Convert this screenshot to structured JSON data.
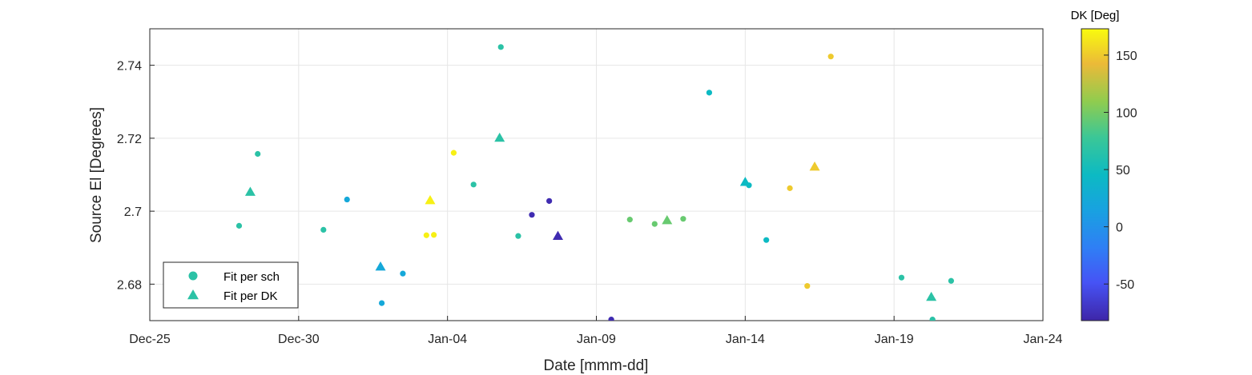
{
  "chart_data": {
    "type": "scatter",
    "xlabel": "Date [mmm-dd]",
    "ylabel": "Source El [Degrees]",
    "x_ticks": [
      "Dec-25",
      "Dec-30",
      "Jan-04",
      "Jan-09",
      "Jan-14",
      "Jan-19",
      "Jan-24"
    ],
    "x_range": [
      "Dec-25",
      "Jan-24"
    ],
    "ylim": [
      2.67,
      2.75
    ],
    "y_ticks": [
      "2.68",
      "2.7",
      "2.72",
      "2.74"
    ],
    "grid": true,
    "legend_position": "bottom-left",
    "colorbar": {
      "title": "DK [Deg]",
      "range": [
        -82,
        173
      ],
      "ticks": [
        "-50",
        "0",
        "50",
        "100",
        "150"
      ],
      "colormap": "parula"
    },
    "series": [
      {
        "name": "Fit per sch",
        "marker": "circle",
        "points": [
          {
            "date": "Dec-28 00:00",
            "y": 2.696,
            "dk": 67
          },
          {
            "date": "Dec-28 15:00",
            "y": 2.7157,
            "dk": 67
          },
          {
            "date": "Dec-30 20:00",
            "y": 2.6949,
            "dk": 67
          },
          {
            "date": "Dec-31 15:00",
            "y": 2.7032,
            "dk": 22
          },
          {
            "date": "Jan-01 19:00",
            "y": 2.6748,
            "dk": 22
          },
          {
            "date": "Jan-02 12:00",
            "y": 2.6829,
            "dk": 22
          },
          {
            "date": "Jan-03 07:00",
            "y": 2.6934,
            "dk": 168
          },
          {
            "date": "Jan-03 13:00",
            "y": 2.6935,
            "dk": 168
          },
          {
            "date": "Jan-04 05:00",
            "y": 2.716,
            "dk": 168
          },
          {
            "date": "Jan-04 21:00",
            "y": 2.7073,
            "dk": 67
          },
          {
            "date": "Jan-05 19:00",
            "y": 2.745,
            "dk": 67
          },
          {
            "date": "Jan-06 09:00",
            "y": 2.6932,
            "dk": 67
          },
          {
            "date": "Jan-06 20:00",
            "y": 2.699,
            "dk": -78
          },
          {
            "date": "Jan-07 10:00",
            "y": 2.7028,
            "dk": -78
          },
          {
            "date": "Jan-09 12:00",
            "y": 2.6703,
            "dk": -78
          },
          {
            "date": "Jan-10 03:00",
            "y": 2.6977,
            "dk": 95
          },
          {
            "date": "Jan-10 23:00",
            "y": 2.6965,
            "dk": 95
          },
          {
            "date": "Jan-11 22:00",
            "y": 2.6979,
            "dk": 95
          },
          {
            "date": "Jan-12 19:00",
            "y": 2.7325,
            "dk": 45
          },
          {
            "date": "Jan-14 03:00",
            "y": 2.7071,
            "dk": 45
          },
          {
            "date": "Jan-14 17:00",
            "y": 2.6921,
            "dk": 45
          },
          {
            "date": "Jan-15 12:00",
            "y": 2.7063,
            "dk": 150
          },
          {
            "date": "Jan-16 02:00",
            "y": 2.6795,
            "dk": 150
          },
          {
            "date": "Jan-16 21:00",
            "y": 2.7424,
            "dk": 150
          },
          {
            "date": "Jan-19 06:00",
            "y": 2.6818,
            "dk": 67
          },
          {
            "date": "Jan-20 07:00",
            "y": 2.6703,
            "dk": 67
          },
          {
            "date": "Jan-20 22:00",
            "y": 2.6809,
            "dk": 67
          }
        ]
      },
      {
        "name": "Fit per DK",
        "marker": "triangle",
        "points": [
          {
            "date": "Dec-28 09:00",
            "y": 2.7053,
            "dk": 67
          },
          {
            "date": "Jan-01 18:00",
            "y": 2.6848,
            "dk": 22
          },
          {
            "date": "Jan-03 10:00",
            "y": 2.703,
            "dk": 168
          },
          {
            "date": "Jan-05 18:00",
            "y": 2.7201,
            "dk": 67
          },
          {
            "date": "Jan-07 17:00",
            "y": 2.6932,
            "dk": -78
          },
          {
            "date": "Jan-11 09:00",
            "y": 2.6975,
            "dk": 95
          },
          {
            "date": "Jan-14 00:00",
            "y": 2.708,
            "dk": 45
          },
          {
            "date": "Jan-16 08:00",
            "y": 2.7122,
            "dk": 150
          },
          {
            "date": "Jan-20 06:00",
            "y": 2.6765,
            "dk": 67
          }
        ]
      }
    ]
  }
}
